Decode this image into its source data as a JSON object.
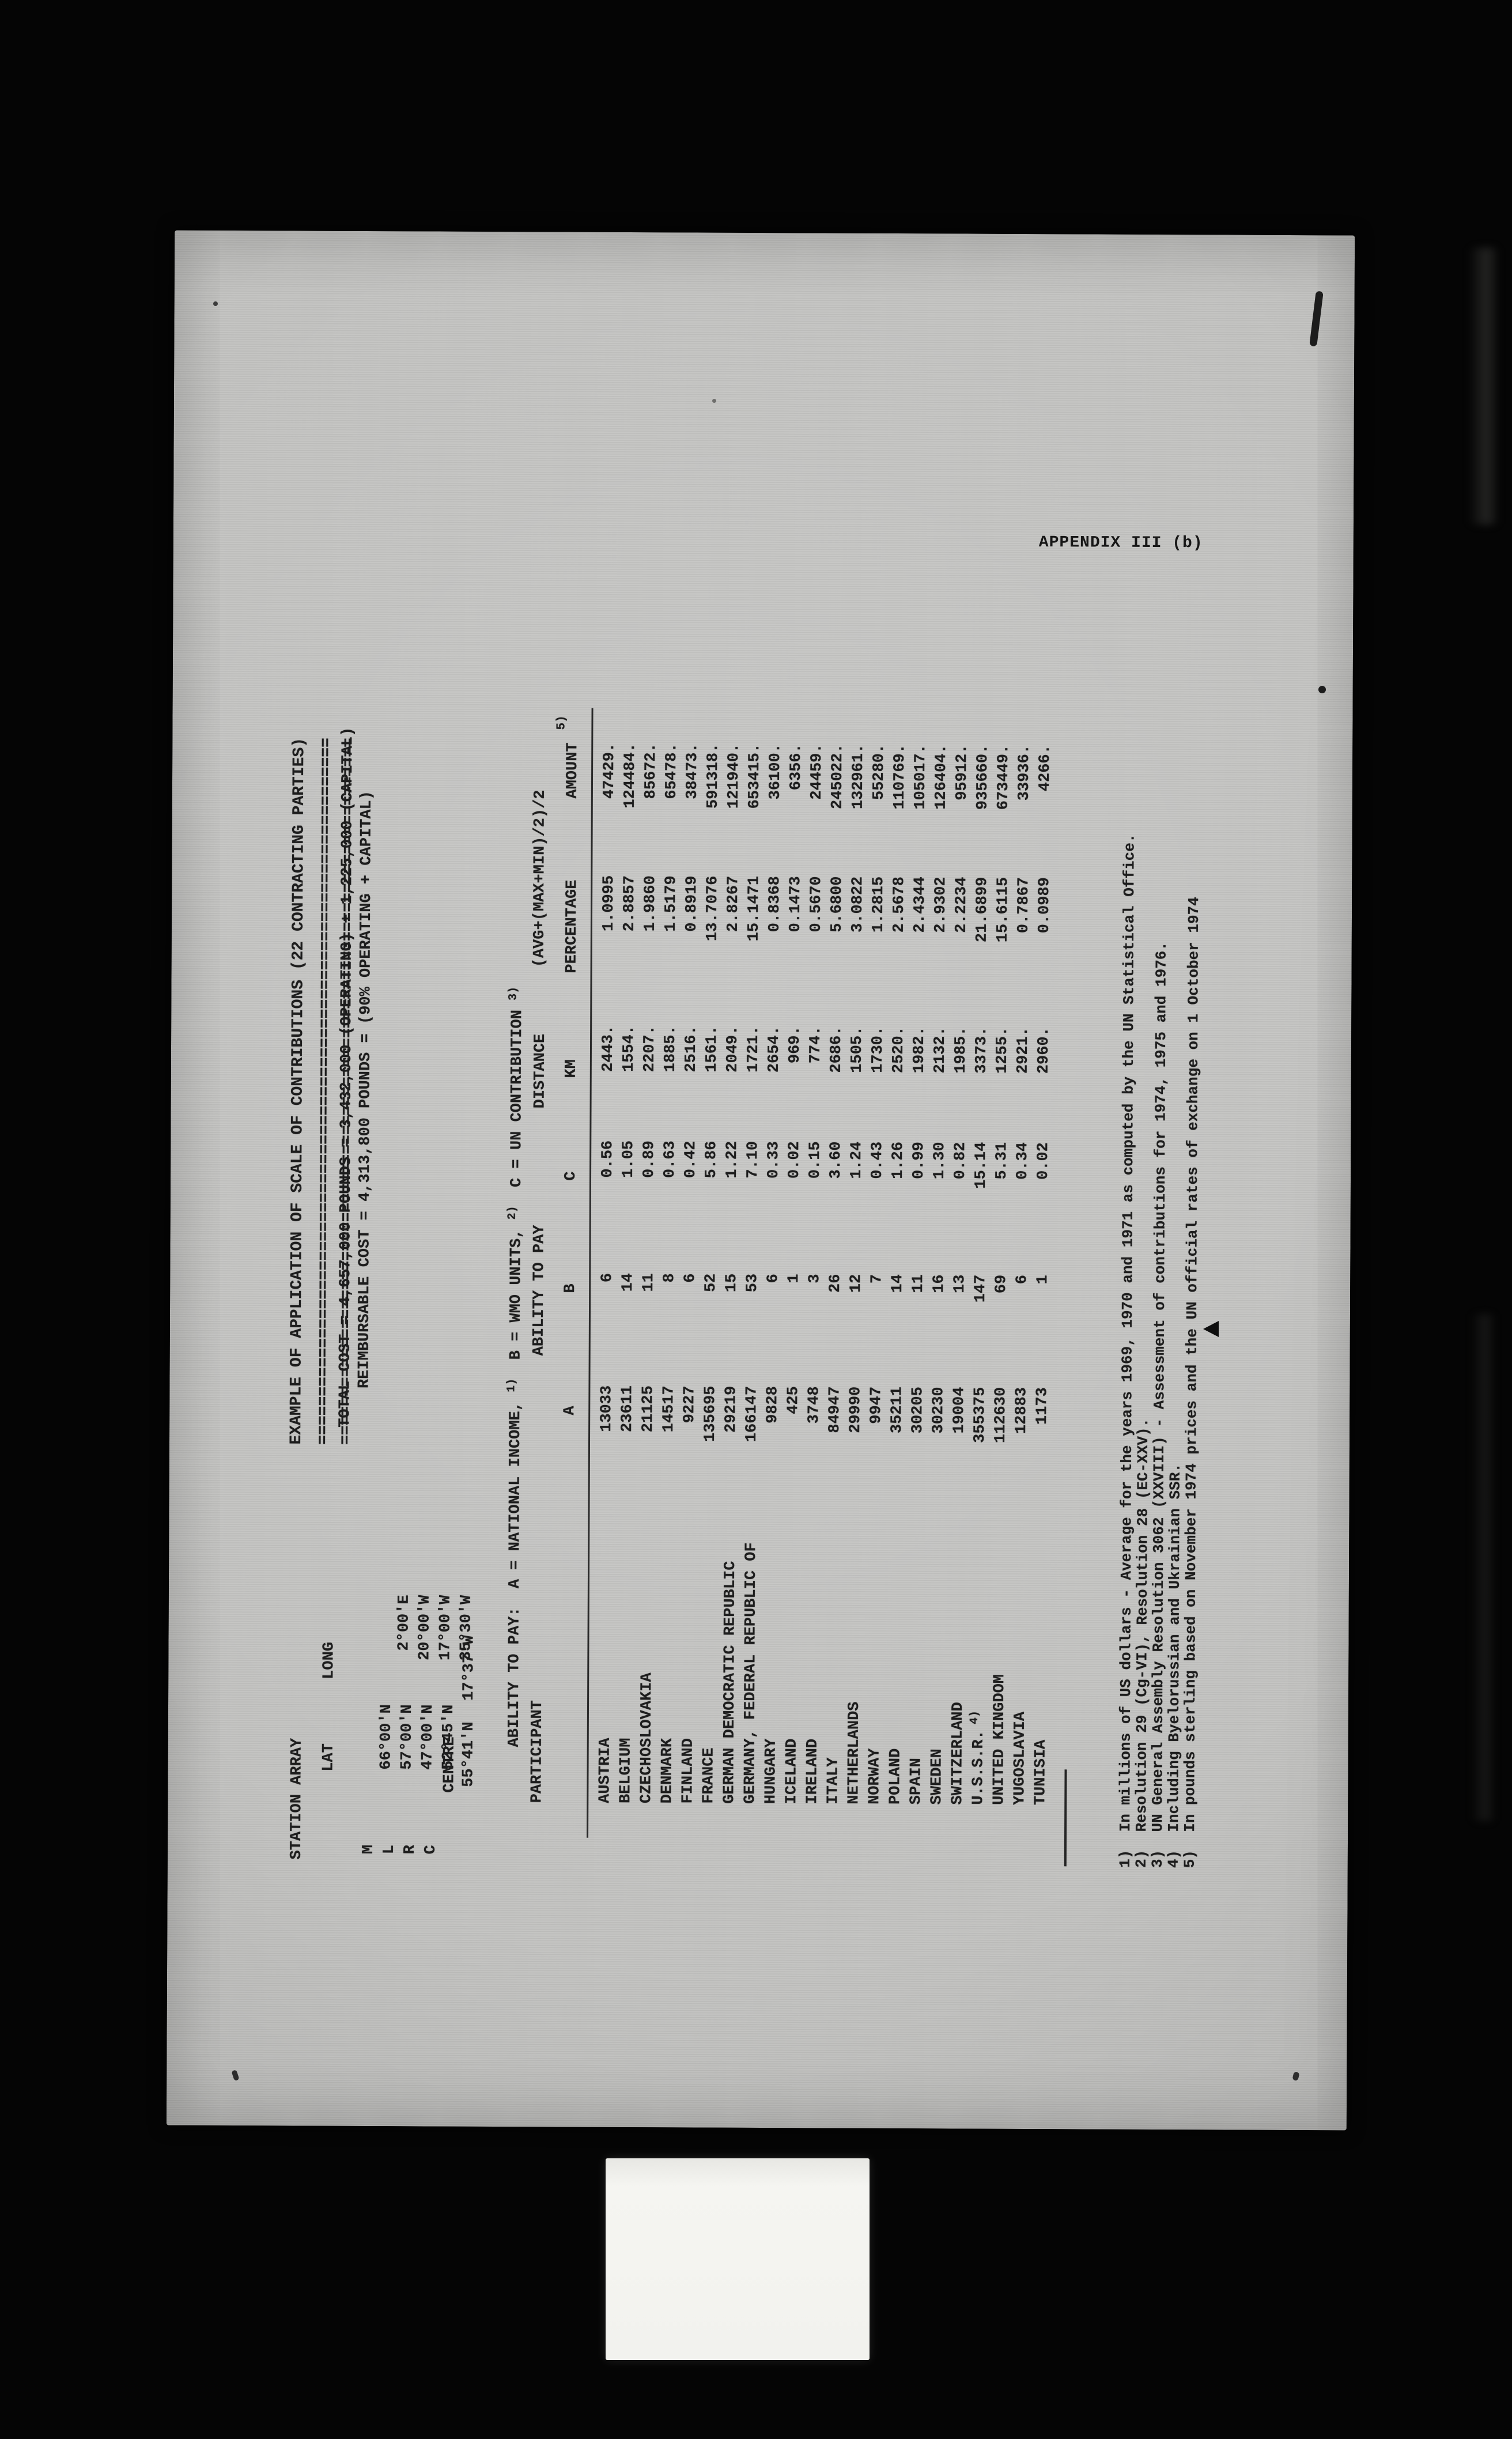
{
  "page": {
    "appendix_label": "APPENDIX III (b)",
    "title": "EXAMPLE OF APPLICATION OF SCALE OF CONTRIBUTIONS (22 CONTRACTING PARTIES)",
    "underline": "=========================================================================",
    "total_cost_line": "TOTAL COST = 4,657,000 POUNDS = 3,432,000 (OPERATING) + 1,225,000 (CAPITAL)",
    "reimbursable_line": "REIMBURSABLE COST = 4,313,800 POUNDS = (90% OPERATING + CAPITAL)"
  },
  "station_array": {
    "title": "STATION ARRAY",
    "col_lat": "LAT",
    "col_long": "LONG",
    "rows": [
      {
        "id": "M",
        "lat": "66°00'N",
        "long": "2°00'E"
      },
      {
        "id": "L",
        "lat": "57°00'N",
        "long": "20°00'W"
      },
      {
        "id": "R",
        "lat": "47°00'N",
        "long": "17°00'W"
      },
      {
        "id": "C",
        "lat": "52°45'N",
        "long": "35°30'W"
      }
    ],
    "centre_label": "CENTRE",
    "centre_lat": "55°41'N",
    "centre_long": "17°37'W"
  },
  "ability": {
    "label": "ABILITY TO PAY:  ",
    "a_text": "A = NATIONAL INCOME, ",
    "a_sup": "1)",
    "b_text": "  B = WMO UNITS, ",
    "b_sup": "2)",
    "c_text": "  C = UN CONTRIBUTION ",
    "c_sup": "3)"
  },
  "table": {
    "header": {
      "participant": "PARTICIPANT",
      "ability": "ABILITY TO PAY",
      "col_a": "A",
      "col_b": "B",
      "col_c": "C",
      "distance": "DISTANCE",
      "km": "KM",
      "formula": "(AVG+(MAX+MIN)/2)/2",
      "percentage": "PERCENTAGE",
      "amount": "AMOUNT",
      "amount_sup": "5)"
    },
    "rows": [
      {
        "name": "AUSTRIA",
        "a": "13033",
        "b": "6",
        "c": "0.56",
        "km": "2443.",
        "pct": "1.0995",
        "amt": "47429."
      },
      {
        "name": "BELGIUM",
        "a": "23611",
        "b": "14",
        "c": "1.05",
        "km": "1554.",
        "pct": "2.8857",
        "amt": "124484."
      },
      {
        "name": "CZECHOSLOVAKIA",
        "a": "21125",
        "b": "11",
        "c": "0.89",
        "km": "2207.",
        "pct": "1.9860",
        "amt": "85672."
      },
      {
        "name": "DENMARK",
        "a": "14517",
        "b": "8",
        "c": "0.63",
        "km": "1885.",
        "pct": "1.5179",
        "amt": "65478."
      },
      {
        "name": "FINLAND",
        "a": "9227",
        "b": "6",
        "c": "0.42",
        "km": "2516.",
        "pct": "0.8919",
        "amt": "38473."
      },
      {
        "name": "FRANCE",
        "a": "135695",
        "b": "52",
        "c": "5.86",
        "km": "1561.",
        "pct": "13.7076",
        "amt": "591318."
      },
      {
        "name": "GERMAN DEMOCRATIC REPUBLIC",
        "a": "29219",
        "b": "15",
        "c": "1.22",
        "km": "2049.",
        "pct": "2.8267",
        "amt": "121940."
      },
      {
        "name": "GERMANY, FEDERAL REPUBLIC OF",
        "a": "166147",
        "b": "53",
        "c": "7.10",
        "km": "1721.",
        "pct": "15.1471",
        "amt": "653415."
      },
      {
        "name": "HUNGARY",
        "a": "9828",
        "b": "6",
        "c": "0.33",
        "km": "2654.",
        "pct": "0.8368",
        "amt": "36100."
      },
      {
        "name": "ICELAND",
        "a": "425",
        "b": "1",
        "c": "0.02",
        "km": "969.",
        "pct": "0.1473",
        "amt": "6356."
      },
      {
        "name": "IRELAND",
        "a": "3748",
        "b": "3",
        "c": "0.15",
        "km": "774.",
        "pct": "0.5670",
        "amt": "24459."
      },
      {
        "name": "ITALY",
        "a": "84947",
        "b": "26",
        "c": "3.60",
        "km": "2686.",
        "pct": "5.6800",
        "amt": "245022."
      },
      {
        "name": "NETHERLANDS",
        "a": "29990",
        "b": "12",
        "c": "1.24",
        "km": "1505.",
        "pct": "3.0822",
        "amt": "132961."
      },
      {
        "name": "NORWAY",
        "a": "9947",
        "b": "7",
        "c": "0.43",
        "km": "1730.",
        "pct": "1.2815",
        "amt": "55280."
      },
      {
        "name": "POLAND",
        "a": "35211",
        "b": "14",
        "c": "1.26",
        "km": "2520.",
        "pct": "2.5678",
        "amt": "110769."
      },
      {
        "name": "SPAIN",
        "a": "30205",
        "b": "11",
        "c": "0.99",
        "km": "1982.",
        "pct": "2.4344",
        "amt": "105017."
      },
      {
        "name": "SWEDEN",
        "a": "30230",
        "b": "16",
        "c": "1.30",
        "km": "2132.",
        "pct": "2.9302",
        "amt": "126404."
      },
      {
        "name": "SWITZERLAND",
        "a": "19004",
        "b": "13",
        "c": "0.82",
        "km": "1985.",
        "pct": "2.2234",
        "amt": "95912."
      },
      {
        "name": "U.S.S.R.",
        "name_sup": "4)",
        "a": "355375",
        "b": "147",
        "c": "15.14",
        "km": "3373.",
        "pct": "21.6899",
        "amt": "935660."
      },
      {
        "name": "UNITED KINGDOM",
        "a": "112630",
        "b": "69",
        "c": "5.31",
        "km": "1255.",
        "pct": "15.6115",
        "amt": "673449."
      },
      {
        "name": "YUGOSLAVIA",
        "a": "12883",
        "b": "6",
        "c": "0.34",
        "km": "2921.",
        "pct": "0.7867",
        "amt": "33936."
      },
      {
        "name": "TUNISIA",
        "a": "1173",
        "b": "1",
        "c": "0.02",
        "km": "2960.",
        "pct": "0.0989",
        "amt": "4266."
      }
    ]
  },
  "footnotes": [
    "1)  In millions of US dollars - Average for the years 1969, 1970 and 1971 as computed by the UN Statistical Office.",
    "2)  Resolution 29 (Cg-VI), Resolution 28 (EC-XXV).",
    "3)  UN General Assembly Resolution 3062 (XXVIII) - Assessment of contributions for 1974, 1975 and 1976.",
    "4)  Including Byelorussian and Ukrainian SSR.",
    "5)  In pounds sterling based on November 1974 prices and the UN official rates of exchange on 1 October 1974"
  ]
}
